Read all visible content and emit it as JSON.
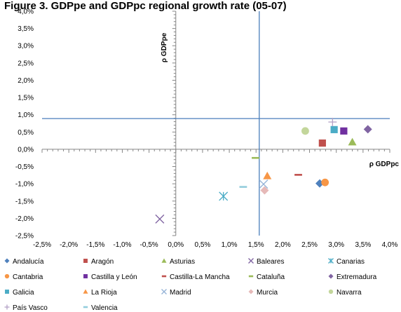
{
  "chart_data": {
    "type": "scatter",
    "title": "Figure 3. GDPpe and GDPpc regional growth rate (05-07)",
    "xlabel": "ρ GDPpc",
    "ylabel": "ρ GDPpe",
    "xlim": [
      -0.025,
      0.04
    ],
    "ylim": [
      -0.025,
      0.04
    ],
    "x_ticks": [
      "-2,5%",
      "-2,0%",
      "-1,5%",
      "-1,0%",
      "-0,5%",
      "0,0%",
      "0,5%",
      "1,0%",
      "1,5%",
      "2,0%",
      "2,5%",
      "3,0%",
      "3,5%",
      "4,0%"
    ],
    "y_ticks": [
      "-2,5%",
      "-2,0%",
      "-1,5%",
      "-1,0%",
      "-0,5%",
      "0,0%",
      "0,5%",
      "1,0%",
      "1,5%",
      "2,0%",
      "2,5%",
      "3,0%",
      "3,5%",
      "4,0%"
    ],
    "reference_lines": {
      "vertical_x": 0.0156,
      "horizontal_y": 0.0089,
      "color": "#4a7ebb"
    },
    "legend_position": "bottom",
    "series": [
      {
        "name": "Andalucía",
        "x": 0.0269,
        "y": -0.0099,
        "marker": "diamond",
        "color": "#4f81bd"
      },
      {
        "name": "Aragón",
        "x": 0.0274,
        "y": 0.0018,
        "marker": "square",
        "color": "#c0504d"
      },
      {
        "name": "Asturias",
        "x": 0.033,
        "y": 0.0021,
        "marker": "triangle",
        "color": "#9bbb59"
      },
      {
        "name": "Baleares",
        "x": -0.003,
        "y": -0.0202,
        "marker": "x",
        "color": "#8064a2"
      },
      {
        "name": "Canarias",
        "x": 0.0089,
        "y": -0.0136,
        "marker": "star",
        "color": "#4bacc6"
      },
      {
        "name": "Cantabria",
        "x": 0.0279,
        "y": -0.0096,
        "marker": "circle",
        "color": "#f79646"
      },
      {
        "name": "Castilla y León",
        "x": 0.0314,
        "y": 0.0053,
        "marker": "square",
        "color": "#7030a0"
      },
      {
        "name": "Castilla-La Mancha",
        "x": 0.0229,
        "y": -0.0074,
        "marker": "dash",
        "color": "#c0504d"
      },
      {
        "name": "Cataluña",
        "x": 0.0149,
        "y": -0.0025,
        "marker": "dash",
        "color": "#9bbb59"
      },
      {
        "name": "Extremadura",
        "x": 0.0359,
        "y": 0.0058,
        "marker": "diamond",
        "color": "#8064a2"
      },
      {
        "name": "Galicia",
        "x": 0.0296,
        "y": 0.0057,
        "marker": "square",
        "color": "#4bacc6"
      },
      {
        "name": "La Rioja",
        "x": 0.0171,
        "y": -0.0077,
        "marker": "triangle",
        "color": "#f79646"
      },
      {
        "name": "Madrid",
        "x": 0.0164,
        "y": -0.0101,
        "marker": "x",
        "color": "#95b3d7"
      },
      {
        "name": "Murcia",
        "x": 0.0166,
        "y": -0.0119,
        "marker": "diamond",
        "color": "#e6b9b8"
      },
      {
        "name": "Navarra",
        "x": 0.0242,
        "y": 0.0053,
        "marker": "circle",
        "color": "#c3d69b"
      },
      {
        "name": "País Vasco",
        "x": 0.0293,
        "y": 0.0079,
        "marker": "plus",
        "color": "#b3a2c7"
      },
      {
        "name": "Valencia",
        "x": 0.0126,
        "y": -0.0109,
        "marker": "dash",
        "color": "#93cddd"
      }
    ]
  }
}
